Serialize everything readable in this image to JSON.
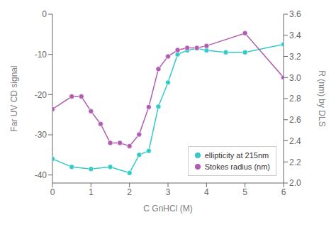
{
  "chart_data": {
    "type": "line",
    "xlabel": "C GnHCl (M)",
    "ylabel": "Far UV CD signal",
    "y2label": "R (nm) by DLS",
    "series": [
      {
        "name": "ellipticity at 215nm",
        "color": "#36C9C9",
        "marker": "circle",
        "x": [
          0,
          0.5,
          1.0,
          1.5,
          2.0,
          2.25,
          2.5,
          2.75,
          3.0,
          3.25,
          3.5,
          3.75,
          4.0,
          4.5,
          5.0,
          6.0
        ],
        "values": [
          -36,
          -38,
          -38.5,
          -38,
          -39.5,
          -35,
          -34,
          -23,
          -17,
          -10,
          -9,
          -8.5,
          -9,
          -9.5,
          -9.5,
          -7.5
        ]
      },
      {
        "name": "Stokes radius (nm)",
        "color": "#B05CB0",
        "marker": "circle",
        "axis": "y2",
        "x": [
          0,
          0.5,
          0.75,
          1.0,
          1.25,
          1.5,
          1.75,
          2.0,
          2.25,
          2.5,
          2.75,
          3.0,
          3.25,
          3.5,
          3.75,
          4.0,
          5.0,
          6.0
        ],
        "values": [
          2.7,
          2.82,
          2.82,
          2.68,
          2.56,
          2.38,
          2.38,
          2.35,
          2.46,
          2.72,
          3.08,
          3.2,
          3.26,
          3.28,
          3.28,
          3.3,
          3.42,
          3.0
        ]
      }
    ],
    "xlim": [
      0,
      6
    ],
    "xticks": [
      0,
      1,
      2,
      3,
      4,
      5,
      6
    ],
    "ylim": [
      -42,
      0
    ],
    "yticks": [
      0,
      -10,
      -20,
      -30,
      -40
    ],
    "y2lim": [
      2.0,
      3.6
    ],
    "y2ticks": [
      {
        "value": 2.0,
        "label": "2.0"
      },
      2.2,
      2.4,
      2.6,
      2.8,
      {
        "value": 3.0,
        "label": "3.0"
      },
      3.2,
      3.4,
      3.6
    ],
    "grid": false,
    "legend": "lower right"
  }
}
